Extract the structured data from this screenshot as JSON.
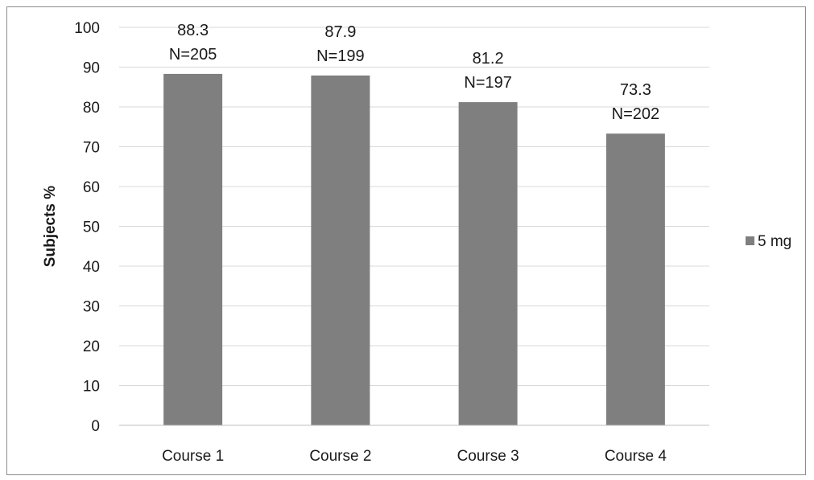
{
  "chart_data": {
    "type": "bar",
    "title": "",
    "xlabel": "",
    "ylabel": "Subjects %",
    "ylim": [
      0,
      100
    ],
    "ytick_step": 10,
    "grid": true,
    "legend_position": "right",
    "categories": [
      "Course 1",
      "Course 2",
      "Course 3",
      "Course 4"
    ],
    "series": [
      {
        "name": "5 mg",
        "color": "#7f7f7f",
        "values": [
          88.3,
          87.9,
          81.2,
          73.3
        ],
        "data_labels": [
          {
            "value": "88.3",
            "n": "N=205"
          },
          {
            "value": "87.9",
            "n": "N=199"
          },
          {
            "value": "81.2",
            "n": "N=197"
          },
          {
            "value": "73.3",
            "n": "N=202"
          }
        ]
      }
    ]
  }
}
